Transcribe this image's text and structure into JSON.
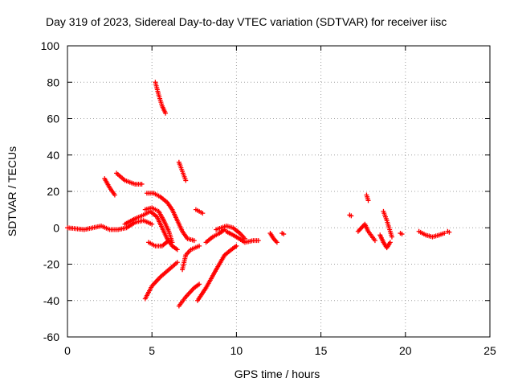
{
  "chart_data": {
    "type": "scatter",
    "title": "Day 319 of 2023, Sidereal Day-to-day VTEC variation (SDTVAR) for receiver iisc",
    "xlabel": "GPS time / hours",
    "ylabel": "SDTVAR / TECUs",
    "xlim": [
      0,
      25
    ],
    "ylim": [
      -60,
      100
    ],
    "xticks": [
      0,
      5,
      10,
      15,
      20,
      25
    ],
    "yticks": [
      -60,
      -40,
      -20,
      0,
      20,
      40,
      60,
      80,
      100
    ],
    "grid": true,
    "marker": "+",
    "color": "#ff0000",
    "segments": [
      [
        [
          0.0,
          0
        ],
        [
          0.5,
          -0.5
        ],
        [
          1.0,
          -1
        ],
        [
          1.5,
          0
        ],
        [
          2.0,
          1
        ],
        [
          2.5,
          -1
        ],
        [
          3.0,
          -1
        ],
        [
          3.5,
          0
        ],
        [
          4.0,
          3
        ],
        [
          4.5,
          4
        ],
        [
          5.0,
          2
        ]
      ],
      [
        [
          5.2,
          80
        ],
        [
          5.4,
          73
        ],
        [
          5.6,
          67
        ],
        [
          5.8,
          63
        ]
      ],
      [
        [
          2.2,
          27
        ],
        [
          2.5,
          22
        ],
        [
          2.8,
          18
        ]
      ],
      [
        [
          2.9,
          30
        ],
        [
          3.4,
          26
        ],
        [
          4.0,
          24
        ],
        [
          4.4,
          24
        ]
      ],
      [
        [
          3.4,
          2
        ],
        [
          4.0,
          5
        ],
        [
          4.5,
          7
        ],
        [
          4.9,
          9
        ],
        [
          5.3,
          6
        ],
        [
          5.6,
          0
        ],
        [
          5.9,
          -6
        ],
        [
          6.2,
          -10
        ],
        [
          6.5,
          -12
        ]
      ],
      [
        [
          4.6,
          10
        ],
        [
          5.0,
          11
        ],
        [
          5.4,
          9
        ],
        [
          5.7,
          4
        ],
        [
          6.0,
          -2
        ],
        [
          6.2,
          -8
        ]
      ],
      [
        [
          4.7,
          19
        ],
        [
          5.1,
          19
        ],
        [
          5.5,
          17
        ],
        [
          5.9,
          14
        ],
        [
          6.2,
          10
        ],
        [
          6.5,
          4
        ],
        [
          6.8,
          -2
        ],
        [
          7.1,
          -6
        ],
        [
          7.5,
          -7
        ]
      ],
      [
        [
          4.8,
          -8
        ],
        [
          5.2,
          -10
        ],
        [
          5.6,
          -10
        ],
        [
          6.0,
          -7
        ]
      ],
      [
        [
          4.6,
          -39
        ],
        [
          5.0,
          -32
        ],
        [
          5.5,
          -27
        ],
        [
          6.0,
          -23
        ],
        [
          6.5,
          -19
        ]
      ],
      [
        [
          6.6,
          36
        ],
        [
          6.8,
          31
        ],
        [
          7.0,
          26
        ]
      ],
      [
        [
          6.6,
          -43
        ],
        [
          7.0,
          -38
        ],
        [
          7.5,
          -33
        ],
        [
          7.8,
          -31
        ]
      ],
      [
        [
          6.8,
          -23
        ],
        [
          7.0,
          -15
        ],
        [
          7.3,
          -12
        ],
        [
          7.8,
          -10
        ]
      ],
      [
        [
          7.7,
          -40
        ],
        [
          8.2,
          -33
        ],
        [
          8.8,
          -23
        ],
        [
          9.3,
          -15
        ],
        [
          9.7,
          -12
        ],
        [
          10.0,
          -10
        ]
      ],
      [
        [
          7.6,
          10
        ],
        [
          8.0,
          8
        ]
      ],
      [
        [
          8.2,
          -8
        ],
        [
          8.6,
          -5
        ],
        [
          9.0,
          -3
        ],
        [
          9.3,
          -1
        ]
      ],
      [
        [
          8.8,
          -1
        ],
        [
          9.1,
          0
        ],
        [
          9.4,
          1
        ],
        [
          9.8,
          0
        ],
        [
          10.2,
          -3
        ],
        [
          10.5,
          -6
        ]
      ],
      [
        [
          9.4,
          -2
        ],
        [
          10.0,
          -5
        ],
        [
          10.5,
          -8
        ],
        [
          11.0,
          -7
        ],
        [
          11.3,
          -7
        ]
      ],
      [
        [
          12.0,
          -3
        ],
        [
          12.2,
          -6
        ],
        [
          12.4,
          -8
        ]
      ],
      [
        [
          12.7,
          -3
        ]
      ],
      [
        [
          16.7,
          7
        ]
      ],
      [
        [
          17.2,
          -2
        ],
        [
          17.6,
          2
        ],
        [
          17.8,
          -2
        ],
        [
          18.2,
          -7
        ]
      ],
      [
        [
          17.7,
          18
        ],
        [
          17.8,
          15
        ]
      ],
      [
        [
          18.7,
          9
        ],
        [
          18.9,
          4
        ],
        [
          19.1,
          -2
        ],
        [
          19.2,
          -5
        ]
      ],
      [
        [
          18.5,
          -4
        ],
        [
          18.7,
          -8
        ],
        [
          18.9,
          -11
        ],
        [
          19.1,
          -8
        ]
      ],
      [
        [
          19.7,
          -3
        ]
      ],
      [
        [
          20.8,
          -2
        ],
        [
          21.2,
          -4
        ],
        [
          21.6,
          -5
        ],
        [
          22.0,
          -4
        ],
        [
          22.3,
          -3
        ]
      ],
      [
        [
          22.5,
          -2
        ]
      ]
    ]
  }
}
